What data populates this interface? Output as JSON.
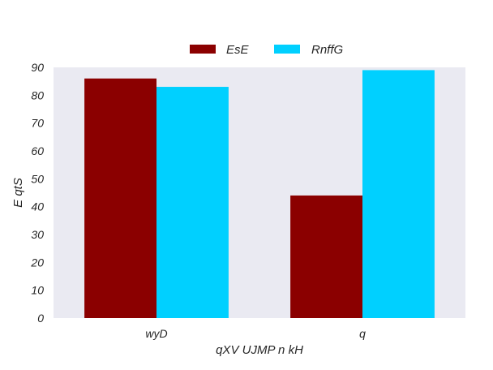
{
  "chart_data": {
    "type": "bar",
    "title": "",
    "xlabel": "qXV UJMP n kH",
    "ylabel": "E qtS",
    "categories": [
      "wyD",
      "q"
    ],
    "series": [
      {
        "name": "EsE",
        "values": [
          86,
          44
        ],
        "color": "#8b0000"
      },
      {
        "name": "RnffG",
        "values": [
          83,
          89
        ],
        "color": "#00d0ff"
      }
    ],
    "ylim": [
      0,
      90
    ],
    "yticks": [
      0,
      10,
      20,
      30,
      40,
      50,
      60,
      70,
      80,
      90
    ],
    "grid": false,
    "legend_position": "top-center",
    "plot_background": "#eaeaf2"
  }
}
